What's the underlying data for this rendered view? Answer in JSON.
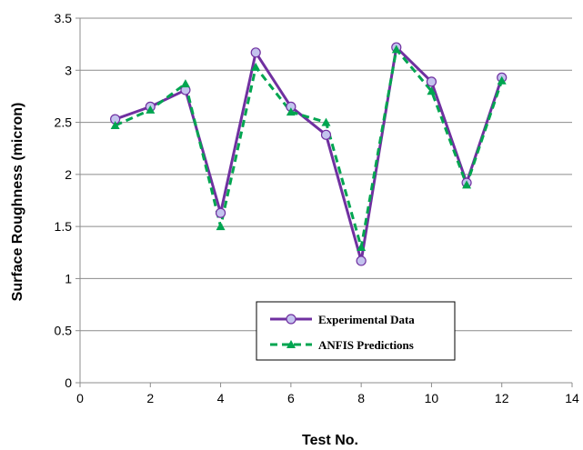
{
  "chart_data": {
    "type": "line",
    "title": "",
    "xlabel": "Test No.",
    "ylabel": "Surface Roughness (micron)",
    "xlim": [
      0,
      14
    ],
    "ylim": [
      0,
      3.5
    ],
    "xticks": [
      "0",
      "2",
      "4",
      "6",
      "8",
      "10",
      "12",
      "14"
    ],
    "yticks": [
      "0",
      "0.5",
      "1",
      "1.5",
      "2",
      "2.5",
      "3",
      "3.5"
    ],
    "grid": "horizontal",
    "legend_position": "bottom-center",
    "series": [
      {
        "name": "Experimental Data",
        "color": "#7030a0",
        "marker_fill": "#c3c3ee",
        "marker": "circle",
        "line": "solid",
        "x": [
          1,
          2,
          3,
          4,
          5,
          6,
          7,
          8,
          9,
          10,
          11,
          12
        ],
        "y": [
          2.53,
          2.65,
          2.81,
          1.63,
          3.17,
          2.65,
          2.38,
          1.17,
          3.22,
          2.89,
          1.92,
          2.93
        ]
      },
      {
        "name": "ANFIS Predictions",
        "color": "#00a550",
        "marker": "triangle",
        "line": "dashed",
        "x": [
          1,
          2,
          3,
          4,
          5,
          6,
          7,
          8,
          9,
          10,
          11,
          12
        ],
        "y": [
          2.47,
          2.62,
          2.87,
          1.5,
          3.03,
          2.6,
          2.5,
          1.3,
          3.2,
          2.8,
          1.9,
          2.9
        ]
      }
    ]
  }
}
